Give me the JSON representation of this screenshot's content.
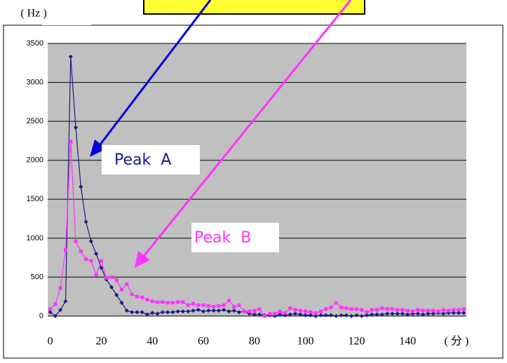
{
  "chart_data": {
    "type": "line",
    "y_label": "( Hz )",
    "x_label": "( 分 )",
    "x": [
      0,
      2,
      4,
      6,
      8,
      10,
      12,
      14,
      16,
      18,
      20,
      22,
      24,
      26,
      28,
      30,
      32,
      34,
      36,
      38,
      40,
      42,
      44,
      46,
      48,
      50,
      52,
      54,
      56,
      58,
      60,
      62,
      64,
      66,
      68,
      70,
      72,
      74,
      76,
      78,
      80,
      82,
      84,
      86,
      88,
      90,
      92,
      94,
      96,
      98,
      100,
      102,
      104,
      106,
      108,
      110,
      112,
      114,
      116,
      118,
      120,
      122,
      124,
      126,
      128,
      130,
      132,
      134,
      136,
      138,
      140,
      142,
      144,
      146,
      148,
      150,
      152,
      154,
      156,
      158,
      160,
      162
    ],
    "series": [
      {
        "name": "Peak A",
        "color": "#1a1a80",
        "marker": "diamond",
        "values": [
          50,
          0,
          80,
          190,
          3330,
          2420,
          1660,
          1210,
          960,
          800,
          620,
          470,
          370,
          270,
          170,
          70,
          50,
          50,
          50,
          20,
          40,
          30,
          50,
          50,
          50,
          60,
          60,
          60,
          70,
          80,
          60,
          70,
          70,
          70,
          80,
          60,
          70,
          50,
          60,
          30,
          20,
          20,
          10,
          10,
          0,
          20,
          10,
          20,
          30,
          20,
          10,
          10,
          0,
          10,
          10,
          10,
          0,
          10,
          10,
          0,
          10,
          0,
          10,
          20,
          20,
          20,
          30,
          30,
          30,
          30,
          20,
          30,
          30,
          20,
          30,
          30,
          40,
          30,
          40,
          40,
          40,
          40
        ]
      },
      {
        "name": "Peak B",
        "color": "#ff33ff",
        "marker": "square",
        "values": [
          90,
          150,
          360,
          850,
          2240,
          960,
          830,
          730,
          710,
          530,
          710,
          490,
          500,
          460,
          340,
          410,
          280,
          250,
          240,
          210,
          190,
          180,
          180,
          170,
          170,
          180,
          180,
          140,
          160,
          140,
          140,
          130,
          120,
          130,
          140,
          200,
          120,
          140,
          60,
          60,
          70,
          90,
          0,
          30,
          30,
          60,
          40,
          100,
          80,
          70,
          60,
          50,
          40,
          60,
          90,
          110,
          170,
          110,
          100,
          90,
          90,
          80,
          50,
          80,
          80,
          100,
          90,
          90,
          80,
          80,
          70,
          60,
          80,
          70,
          70,
          70,
          60,
          80,
          70,
          80,
          80,
          90
        ]
      }
    ],
    "xlim": [
      -1,
      163
    ],
    "ylim": [
      0,
      3500
    ],
    "xticks": [
      0,
      20,
      40,
      60,
      80,
      100,
      120,
      140
    ],
    "yticks": [
      0,
      500,
      1000,
      1500,
      2000,
      2500,
      3000,
      3500
    ],
    "grid": true,
    "annotations": [
      {
        "text": "Peak  A",
        "series": 0
      },
      {
        "text": "Peak  B",
        "series": 1
      }
    ]
  }
}
